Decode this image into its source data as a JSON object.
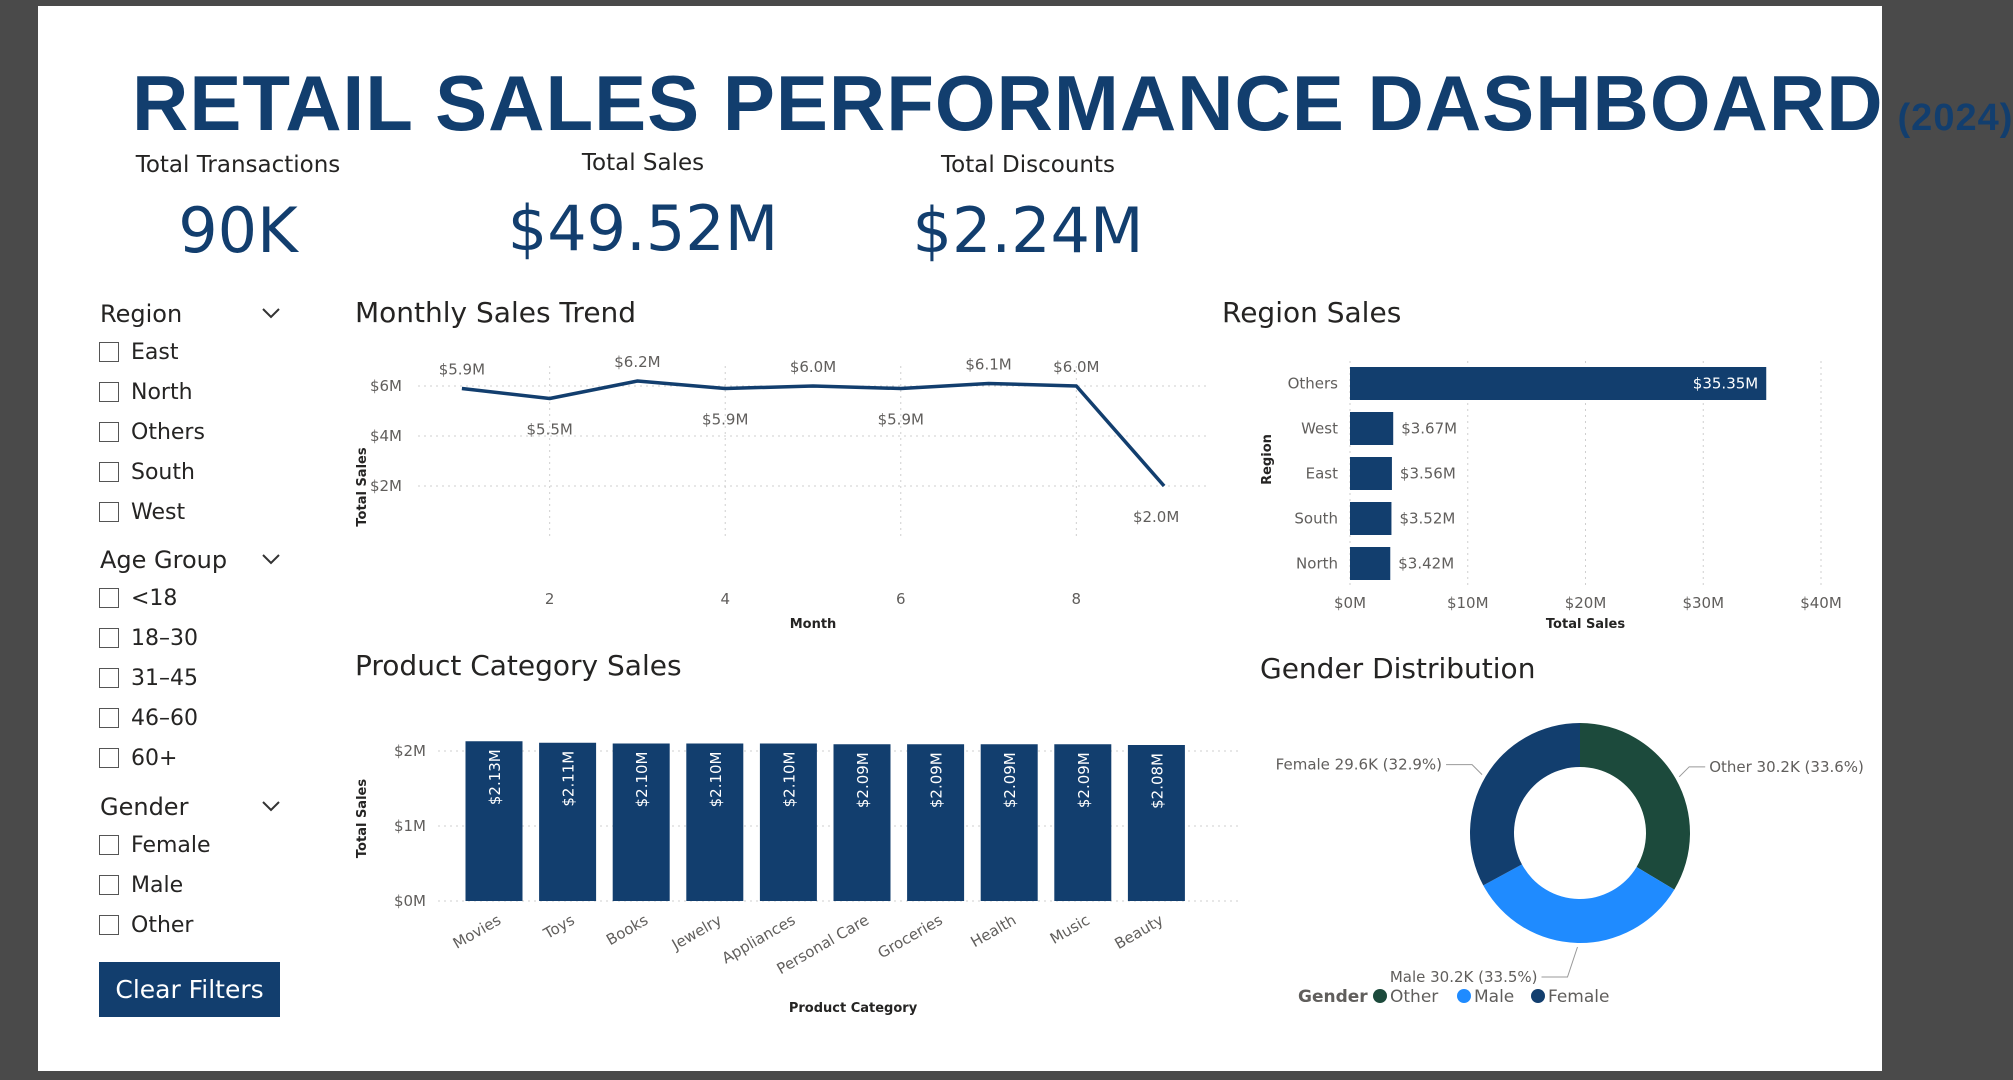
{
  "header": {
    "title": "RETAIL SALES PERFORMANCE DASHBOARD",
    "year": "(2024)"
  },
  "kpis": [
    {
      "label": "Total Transactions",
      "value": "90K"
    },
    {
      "label": "Total Sales",
      "value": "$49.52M"
    },
    {
      "label": "Total Discounts",
      "value": "$2.24M"
    }
  ],
  "slicers": {
    "region": {
      "title": "Region",
      "options": [
        "East",
        "North",
        "Others",
        "South",
        "West"
      ]
    },
    "age": {
      "title": "Age Group",
      "options": [
        "<18",
        "18–30",
        "31–45",
        "46–60",
        "60+"
      ]
    },
    "gender": {
      "title": "Gender",
      "options": [
        "Female",
        "Male",
        "Other"
      ]
    }
  },
  "clear_button": "Clear Filters",
  "colors": {
    "navy": "#123e6e",
    "blue": "#1f8bff",
    "green": "#1c4a3c",
    "grid": "#cfcfcf"
  },
  "chart_data": [
    {
      "type": "line",
      "title": "Monthly Sales Trend",
      "xlabel": "Month",
      "ylabel": "Total Sales",
      "x": [
        1,
        2,
        3,
        4,
        5,
        6,
        7,
        8,
        9
      ],
      "values": [
        5.9,
        5.5,
        6.2,
        5.9,
        6.0,
        5.9,
        6.1,
        6.0,
        2.0
      ],
      "labels": [
        "$5.9M",
        "$5.5M",
        "$6.2M",
        "$5.9M",
        "$6.0M",
        "$5.9M",
        "$6.1M",
        "$6.0M",
        "$2.0M"
      ],
      "xticks": [
        2,
        4,
        6,
        8
      ],
      "yticks": [
        2,
        4,
        6
      ],
      "ytick_labels": [
        "$2M",
        "$4M",
        "$6M"
      ],
      "ylim": [
        0,
        6.8
      ],
      "xlim": [
        0.5,
        9.5
      ]
    },
    {
      "type": "bar",
      "orientation": "horizontal",
      "title": "Region Sales",
      "xlabel": "Total Sales",
      "ylabel": "Region",
      "categories": [
        "Others",
        "West",
        "East",
        "South",
        "North"
      ],
      "values": [
        35.35,
        3.67,
        3.56,
        3.52,
        3.42
      ],
      "labels": [
        "$35.35M",
        "$3.67M",
        "$3.56M",
        "$3.52M",
        "$3.42M"
      ],
      "xticks": [
        0,
        10,
        20,
        30,
        40
      ],
      "xtick_labels": [
        "$0M",
        "$10M",
        "$20M",
        "$30M",
        "$40M"
      ],
      "xlim": [
        0,
        40
      ]
    },
    {
      "type": "bar",
      "title": "Product Category Sales",
      "xlabel": "Product Category",
      "ylabel": "Total Sales",
      "categories": [
        "Movies",
        "Toys",
        "Books",
        "Jewelry",
        "Appliances",
        "Personal Care",
        "Groceries",
        "Health",
        "Music",
        "Beauty"
      ],
      "values": [
        2.13,
        2.11,
        2.1,
        2.1,
        2.1,
        2.09,
        2.09,
        2.09,
        2.09,
        2.08
      ],
      "labels": [
        "$2.13M",
        "$2.11M",
        "$2.10M",
        "$2.10M",
        "$2.10M",
        "$2.09M",
        "$2.09M",
        "$2.09M",
        "$2.09M",
        "$2.08M"
      ],
      "yticks": [
        0,
        1,
        2
      ],
      "ytick_labels": [
        "$0M",
        "$1M",
        "$2M"
      ],
      "ylim": [
        0,
        2.2
      ]
    },
    {
      "type": "pie",
      "title": "Gender Distribution",
      "legend_title": "Gender",
      "legend": [
        "Other",
        "Male",
        "Female"
      ],
      "slices": [
        {
          "name": "Other",
          "value": 30.2,
          "pct": 33.6,
          "label": "Other 30.2K (33.6%)"
        },
        {
          "name": "Male",
          "value": 30.2,
          "pct": 33.5,
          "label": "Male 30.2K (33.5%)"
        },
        {
          "name": "Female",
          "value": 29.6,
          "pct": 32.9,
          "label": "Female 29.6K (32.9%)"
        }
      ]
    }
  ]
}
